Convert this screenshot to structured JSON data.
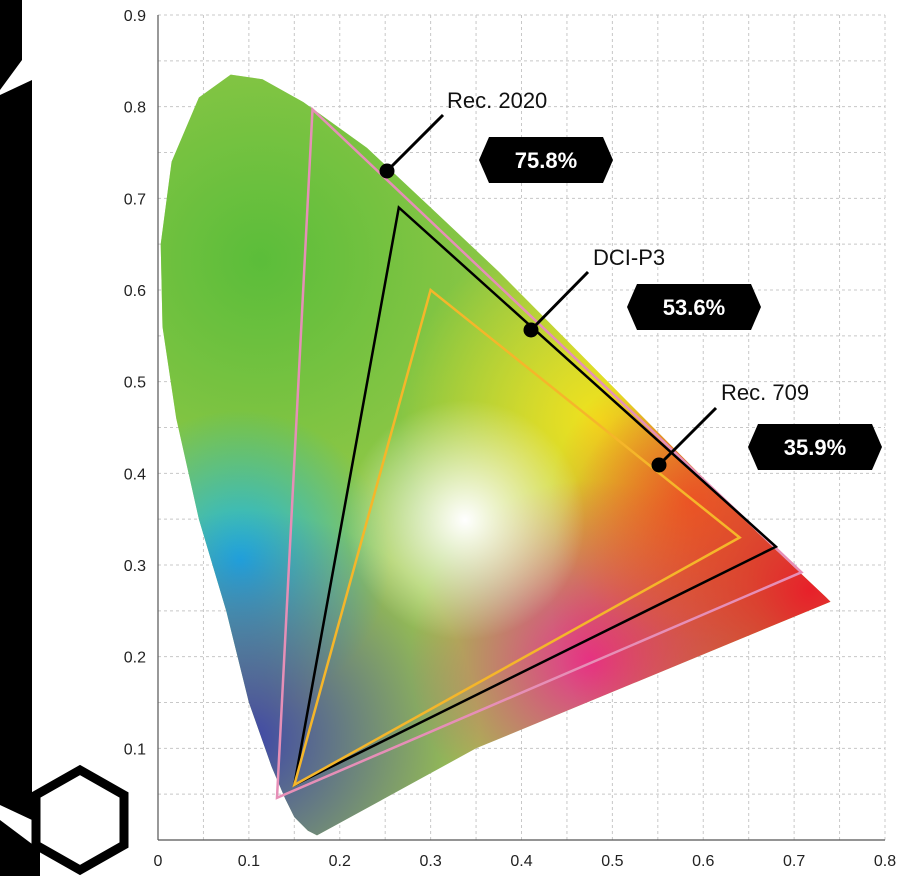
{
  "chart_data": {
    "type": "scatter",
    "title": "",
    "xlabel": "",
    "ylabel": "",
    "xlim": [
      0,
      0.8
    ],
    "ylim": [
      0,
      0.9
    ],
    "x_ticks": [
      "0",
      "0.1",
      "0.2",
      "0.3",
      "0.4",
      "0.5",
      "0.6",
      "0.7",
      "0.8"
    ],
    "y_ticks": [
      "0.1",
      "0.2",
      "0.3",
      "0.4",
      "0.5",
      "0.6",
      "0.7",
      "0.8",
      "0.9"
    ],
    "grid": true,
    "spectral_locus": [
      [
        0.175,
        0.005
      ],
      [
        0.165,
        0.01
      ],
      [
        0.15,
        0.025
      ],
      [
        0.14,
        0.045
      ],
      [
        0.125,
        0.08
      ],
      [
        0.1,
        0.15
      ],
      [
        0.075,
        0.25
      ],
      [
        0.045,
        0.35
      ],
      [
        0.02,
        0.46
      ],
      [
        0.005,
        0.56
      ],
      [
        0.003,
        0.65
      ],
      [
        0.015,
        0.74
      ],
      [
        0.045,
        0.81
      ],
      [
        0.08,
        0.835
      ],
      [
        0.115,
        0.83
      ],
      [
        0.16,
        0.805
      ],
      [
        0.23,
        0.755
      ],
      [
        0.3,
        0.69
      ],
      [
        0.375,
        0.62
      ],
      [
        0.45,
        0.545
      ],
      [
        0.52,
        0.475
      ],
      [
        0.59,
        0.405
      ],
      [
        0.66,
        0.335
      ],
      [
        0.735,
        0.265
      ],
      [
        0.74,
        0.26
      ],
      [
        0.35,
        0.1
      ],
      [
        0.175,
        0.005
      ]
    ],
    "series": [
      {
        "name": "Rec. 2020",
        "color": "#e68fb7",
        "coverage": "75.8%",
        "points": [
          [
            0.708,
            0.292
          ],
          [
            0.17,
            0.797
          ],
          [
            0.131,
            0.046
          ]
        ]
      },
      {
        "name": "DCI-P3",
        "color": "#000000",
        "coverage": "53.6%",
        "points": [
          [
            0.68,
            0.32
          ],
          [
            0.265,
            0.69
          ],
          [
            0.15,
            0.06
          ]
        ]
      },
      {
        "name": "Rec. 709",
        "color": "#f5b62a",
        "coverage": "35.9%",
        "points": [
          [
            0.64,
            0.33
          ],
          [
            0.3,
            0.6
          ],
          [
            0.15,
            0.06
          ]
        ]
      }
    ]
  }
}
